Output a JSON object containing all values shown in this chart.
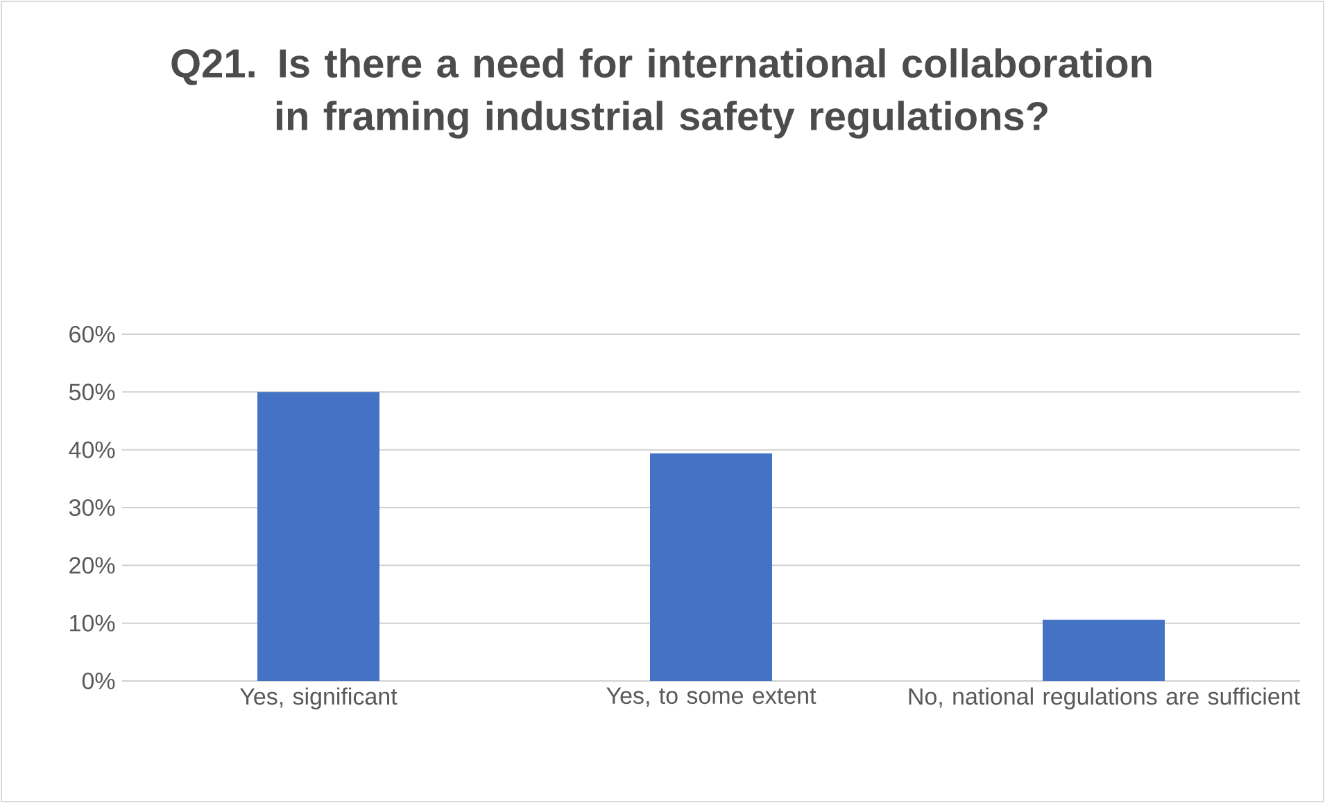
{
  "chart_data": {
    "type": "bar",
    "title": "Q21. Is there a need for international collaboration in framing industrial safety regulations?",
    "categories": [
      "Yes, significant",
      "Yes, to some extent",
      "No, national regulations are sufficient"
    ],
    "values": [
      50,
      39.4,
      10.6
    ],
    "color": "#4472c4",
    "ylim": [
      0,
      60
    ],
    "yticks": [
      {
        "value": 0,
        "label": "0%"
      },
      {
        "value": 10,
        "label": "10%"
      },
      {
        "value": 20,
        "label": "20%"
      },
      {
        "value": 30,
        "label": "30%"
      },
      {
        "value": 40,
        "label": "40%"
      },
      {
        "value": 50,
        "label": "50%"
      },
      {
        "value": 60,
        "label": "60%"
      }
    ],
    "grid": "y"
  }
}
